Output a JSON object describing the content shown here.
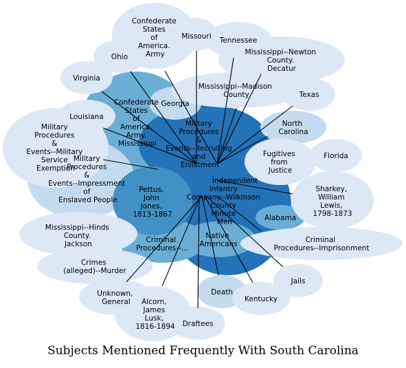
{
  "caption": "Subjects Mentioned Frequently With South Carolina",
  "center": "Military Procedures & Events--Recruiting and Enlistment",
  "colors": {
    "bubble_light": "#dce8f5",
    "bubble_medium": "#c4daee",
    "bubble_mid": "#6aaed6",
    "bubble_dark": "#2473b8",
    "bubble_blue": "#4191c6",
    "edge": "#000000"
  },
  "nodes": [
    {
      "id": "confederate-army",
      "label": "Confederate States of America. Army"
    },
    {
      "id": "missouri",
      "label": "Missouri"
    },
    {
      "id": "tennessee",
      "label": "Tennessee"
    },
    {
      "id": "ohio",
      "label": "Ohio"
    },
    {
      "id": "newton-county",
      "label": "Mississippi--Newton County. Decatur"
    },
    {
      "id": "virginia",
      "label": "Virginia"
    },
    {
      "id": "madison-county",
      "label": "Mississippi--Madison County"
    },
    {
      "id": "texas",
      "label": "Texas"
    },
    {
      "id": "confederate-army-2",
      "label": "Confederate States of America. Army. Mississippi"
    },
    {
      "id": "georgia",
      "label": "Georgia"
    },
    {
      "id": "louisiana",
      "label": "Louisiana"
    },
    {
      "id": "north-carolina",
      "label": "North Carolina"
    },
    {
      "id": "service-exemption",
      "label": "Military Procedures & Events--Military Service Exemption"
    },
    {
      "id": "fugitives",
      "label": "Fugitives from Justice"
    },
    {
      "id": "florida",
      "label": "Florida"
    },
    {
      "id": "impressment",
      "label": "Military Procedures & Events--Impressment of Enslaved People"
    },
    {
      "id": "independent",
      "label": "Independent"
    },
    {
      "id": "wilkinson-infantry",
      "label": "Infantry Company--Wilkinson County Minute Men"
    },
    {
      "id": "pettus",
      "label": "Pettus, John Jones, 1813-1867"
    },
    {
      "id": "sharkey",
      "label": "Sharkey, William Lewis, 1798-1873"
    },
    {
      "id": "alabama",
      "label": "Alabama"
    },
    {
      "id": "hinds-county",
      "label": "Mississippi--Hinds County. Jackson"
    },
    {
      "id": "criminal-procedures",
      "label": "Criminal Procedures--..."
    },
    {
      "id": "native-americans",
      "label": "Native Americans"
    },
    {
      "id": "imprisonment",
      "label": "Criminal Procedures--Imprisonment"
    },
    {
      "id": "crimes-murder",
      "label": "Crimes (alleged)--Murder"
    },
    {
      "id": "jails",
      "label": "Jails"
    },
    {
      "id": "unknown-general",
      "label": "Unknown, General"
    },
    {
      "id": "death",
      "label": "Death"
    },
    {
      "id": "kentucky",
      "label": "Kentucky"
    },
    {
      "id": "alcorn",
      "label": "Alcorn, James Lusk, 1816-1894"
    },
    {
      "id": "draftees",
      "label": "Draftees"
    }
  ]
}
